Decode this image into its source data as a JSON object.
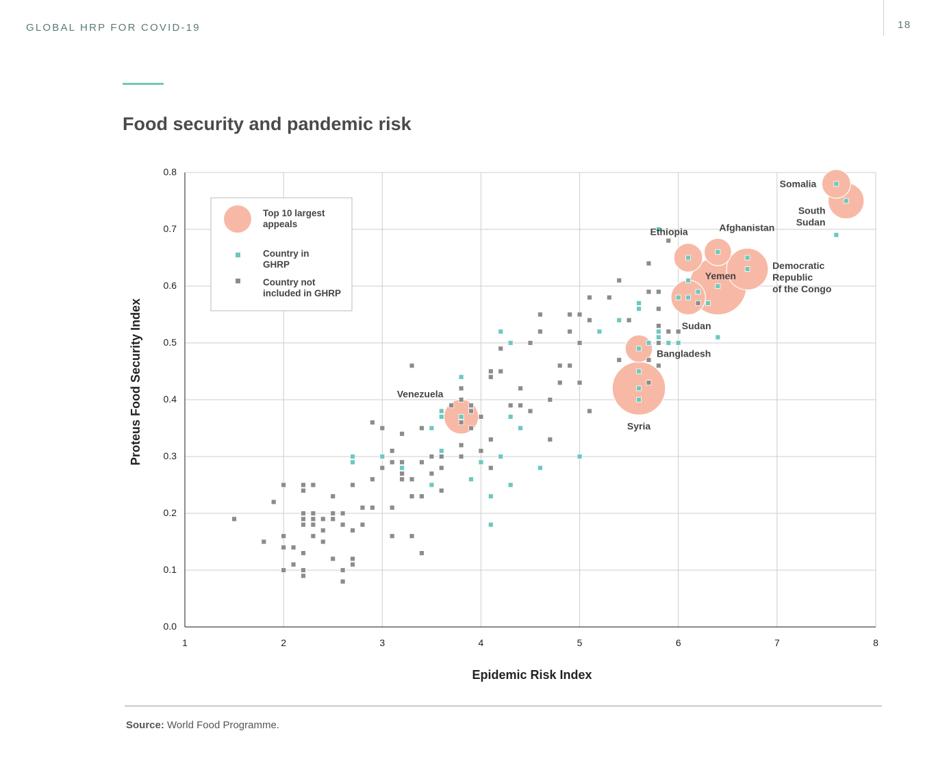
{
  "header": {
    "title": "GLOBAL HRP FOR COVID-19",
    "page_number": "18"
  },
  "chart_data": {
    "type": "scatter",
    "title": "Food security and pandemic risk",
    "xlabel": "Epidemic Risk Index",
    "ylabel": "Proteus Food Security Index",
    "xlim": [
      1,
      8
    ],
    "ylim": [
      0,
      0.8
    ],
    "x_ticks": [
      "1",
      "2",
      "3",
      "4",
      "5",
      "6",
      "7",
      "8"
    ],
    "y_ticks": [
      "0.0",
      "0.1",
      "0.2",
      "0.3",
      "0.4",
      "0.5",
      "0.6",
      "0.7",
      "0.8"
    ],
    "grid": true,
    "legend": {
      "placement": "top-left",
      "items": [
        {
          "label_lines": [
            "Top 10 largest",
            "appeals"
          ],
          "marker": "bubble"
        },
        {
          "label_lines": [
            "Country in",
            "GHRP"
          ],
          "marker": "teal-square"
        },
        {
          "label_lines": [
            "Country not",
            "included in GHRP"
          ],
          "marker": "gray-square"
        }
      ]
    },
    "colors": {
      "ghrp": "#6dc8be",
      "non_ghrp": "#8c8c8c",
      "bubble": "#f7b9a5",
      "grid": "#cccccc"
    },
    "top_appeals": [
      {
        "name_lines": [
          "Somalia"
        ],
        "x": 7.6,
        "y": 0.78,
        "size": 1.0,
        "label_pos": "left"
      },
      {
        "name_lines": [
          "South",
          "Sudan"
        ],
        "x": 7.7,
        "y": 0.75,
        "size": 1.25,
        "label_pos": "left-below"
      },
      {
        "name_lines": [
          "Afghanistan"
        ],
        "x": 6.4,
        "y": 0.66,
        "size": 0.95,
        "label_pos": "above-right"
      },
      {
        "name_lines": [
          "Democratic",
          "Republic",
          "of the Congo"
        ],
        "x": 6.7,
        "y": 0.63,
        "size": 1.45,
        "label_pos": "right"
      },
      {
        "name_lines": [
          "Ethiopia"
        ],
        "x": 6.1,
        "y": 0.65,
        "size": 1.0,
        "label_pos": "above-left"
      },
      {
        "name_lines": [
          "Yemen"
        ],
        "x": 6.4,
        "y": 0.6,
        "size": 2.0,
        "label_pos": "center"
      },
      {
        "name_lines": [
          "Sudan"
        ],
        "x": 6.1,
        "y": 0.58,
        "size": 1.2,
        "label_pos": "below"
      },
      {
        "name_lines": [
          "Bangladesh"
        ],
        "x": 5.6,
        "y": 0.49,
        "size": 0.95,
        "label_pos": "right"
      },
      {
        "name_lines": [
          "Syria"
        ],
        "x": 5.6,
        "y": 0.42,
        "size": 1.85,
        "label_pos": "below"
      },
      {
        "name_lines": [
          "Venezuela"
        ],
        "x": 3.8,
        "y": 0.37,
        "size": 1.2,
        "label_pos": "above-left"
      }
    ],
    "series": [
      {
        "name": "Country in GHRP",
        "points": [
          [
            7.6,
            0.78
          ],
          [
            7.7,
            0.75
          ],
          [
            7.6,
            0.69
          ],
          [
            6.4,
            0.66
          ],
          [
            6.1,
            0.65
          ],
          [
            6.7,
            0.65
          ],
          [
            6.7,
            0.63
          ],
          [
            6.1,
            0.61
          ],
          [
            6.4,
            0.6
          ],
          [
            6.2,
            0.59
          ],
          [
            6.0,
            0.58
          ],
          [
            6.1,
            0.58
          ],
          [
            6.3,
            0.57
          ],
          [
            5.8,
            0.7
          ],
          [
            5.6,
            0.57
          ],
          [
            5.6,
            0.56
          ],
          [
            5.4,
            0.54
          ],
          [
            5.2,
            0.52
          ],
          [
            5.8,
            0.52
          ],
          [
            5.8,
            0.51
          ],
          [
            5.7,
            0.5
          ],
          [
            5.9,
            0.5
          ],
          [
            6.0,
            0.5
          ],
          [
            6.4,
            0.51
          ],
          [
            5.6,
            0.49
          ],
          [
            5.6,
            0.45
          ],
          [
            5.6,
            0.42
          ],
          [
            5.6,
            0.4
          ],
          [
            4.2,
            0.52
          ],
          [
            4.3,
            0.5
          ],
          [
            3.8,
            0.44
          ],
          [
            3.6,
            0.38
          ],
          [
            3.6,
            0.37
          ],
          [
            3.8,
            0.37
          ],
          [
            3.5,
            0.35
          ],
          [
            4.3,
            0.37
          ],
          [
            4.4,
            0.35
          ],
          [
            3.6,
            0.31
          ],
          [
            2.7,
            0.3
          ],
          [
            3.0,
            0.3
          ],
          [
            2.7,
            0.29
          ],
          [
            3.2,
            0.28
          ],
          [
            4.0,
            0.29
          ],
          [
            4.2,
            0.3
          ],
          [
            5.0,
            0.3
          ],
          [
            4.6,
            0.28
          ],
          [
            3.9,
            0.26
          ],
          [
            3.5,
            0.25
          ],
          [
            4.3,
            0.25
          ],
          [
            4.1,
            0.23
          ],
          [
            4.1,
            0.18
          ]
        ]
      },
      {
        "name": "Country not included in GHRP",
        "points": [
          [
            5.9,
            0.68
          ],
          [
            5.7,
            0.64
          ],
          [
            5.4,
            0.61
          ],
          [
            5.1,
            0.58
          ],
          [
            5.3,
            0.58
          ],
          [
            5.7,
            0.59
          ],
          [
            5.8,
            0.59
          ],
          [
            6.2,
            0.57
          ],
          [
            5.8,
            0.56
          ],
          [
            4.6,
            0.55
          ],
          [
            4.9,
            0.55
          ],
          [
            5.0,
            0.55
          ],
          [
            5.1,
            0.54
          ],
          [
            5.5,
            0.54
          ],
          [
            4.6,
            0.52
          ],
          [
            4.9,
            0.52
          ],
          [
            5.8,
            0.53
          ],
          [
            5.9,
            0.52
          ],
          [
            6.0,
            0.52
          ],
          [
            5.8,
            0.5
          ],
          [
            4.2,
            0.49
          ],
          [
            4.5,
            0.5
          ],
          [
            5.0,
            0.5
          ],
          [
            5.4,
            0.47
          ],
          [
            5.7,
            0.47
          ],
          [
            5.8,
            0.46
          ],
          [
            4.8,
            0.46
          ],
          [
            4.9,
            0.46
          ],
          [
            4.1,
            0.45
          ],
          [
            4.2,
            0.45
          ],
          [
            4.1,
            0.44
          ],
          [
            3.3,
            0.46
          ],
          [
            4.8,
            0.43
          ],
          [
            5.0,
            0.43
          ],
          [
            5.7,
            0.43
          ],
          [
            4.4,
            0.42
          ],
          [
            3.8,
            0.42
          ],
          [
            4.7,
            0.4
          ],
          [
            3.8,
            0.4
          ],
          [
            3.7,
            0.39
          ],
          [
            3.9,
            0.39
          ],
          [
            4.3,
            0.39
          ],
          [
            4.4,
            0.39
          ],
          [
            3.9,
            0.38
          ],
          [
            4.5,
            0.38
          ],
          [
            5.1,
            0.38
          ],
          [
            4.0,
            0.37
          ],
          [
            3.8,
            0.36
          ],
          [
            2.9,
            0.36
          ],
          [
            3.0,
            0.35
          ],
          [
            3.4,
            0.35
          ],
          [
            3.9,
            0.35
          ],
          [
            3.2,
            0.34
          ],
          [
            4.1,
            0.33
          ],
          [
            4.7,
            0.33
          ],
          [
            3.8,
            0.32
          ],
          [
            3.1,
            0.31
          ],
          [
            4.0,
            0.31
          ],
          [
            3.5,
            0.3
          ],
          [
            3.6,
            0.3
          ],
          [
            3.8,
            0.3
          ],
          [
            3.1,
            0.29
          ],
          [
            3.2,
            0.29
          ],
          [
            3.4,
            0.29
          ],
          [
            3.0,
            0.28
          ],
          [
            3.6,
            0.28
          ],
          [
            4.1,
            0.28
          ],
          [
            3.2,
            0.27
          ],
          [
            3.5,
            0.27
          ],
          [
            2.9,
            0.26
          ],
          [
            3.2,
            0.26
          ],
          [
            3.3,
            0.26
          ],
          [
            2.0,
            0.25
          ],
          [
            2.2,
            0.25
          ],
          [
            2.3,
            0.25
          ],
          [
            2.7,
            0.25
          ],
          [
            2.2,
            0.24
          ],
          [
            3.6,
            0.24
          ],
          [
            2.5,
            0.23
          ],
          [
            3.3,
            0.23
          ],
          [
            3.4,
            0.23
          ],
          [
            1.9,
            0.22
          ],
          [
            2.8,
            0.21
          ],
          [
            2.9,
            0.21
          ],
          [
            3.1,
            0.21
          ],
          [
            2.2,
            0.2
          ],
          [
            2.3,
            0.2
          ],
          [
            2.5,
            0.2
          ],
          [
            2.6,
            0.2
          ],
          [
            1.5,
            0.19
          ],
          [
            2.2,
            0.19
          ],
          [
            2.3,
            0.19
          ],
          [
            2.4,
            0.19
          ],
          [
            2.5,
            0.19
          ],
          [
            2.2,
            0.18
          ],
          [
            2.3,
            0.18
          ],
          [
            2.6,
            0.18
          ],
          [
            2.8,
            0.18
          ],
          [
            2.4,
            0.17
          ],
          [
            2.7,
            0.17
          ],
          [
            2.0,
            0.16
          ],
          [
            2.3,
            0.16
          ],
          [
            3.1,
            0.16
          ],
          [
            3.3,
            0.16
          ],
          [
            1.8,
            0.15
          ],
          [
            2.4,
            0.15
          ],
          [
            2.0,
            0.14
          ],
          [
            2.1,
            0.14
          ],
          [
            2.2,
            0.13
          ],
          [
            3.4,
            0.13
          ],
          [
            2.5,
            0.12
          ],
          [
            2.7,
            0.12
          ],
          [
            2.1,
            0.11
          ],
          [
            2.7,
            0.11
          ],
          [
            2.0,
            0.1
          ],
          [
            2.2,
            0.1
          ],
          [
            2.6,
            0.1
          ],
          [
            2.2,
            0.09
          ],
          [
            2.6,
            0.08
          ]
        ]
      }
    ]
  },
  "source": {
    "label": "Source:",
    "text": " World Food Programme."
  }
}
